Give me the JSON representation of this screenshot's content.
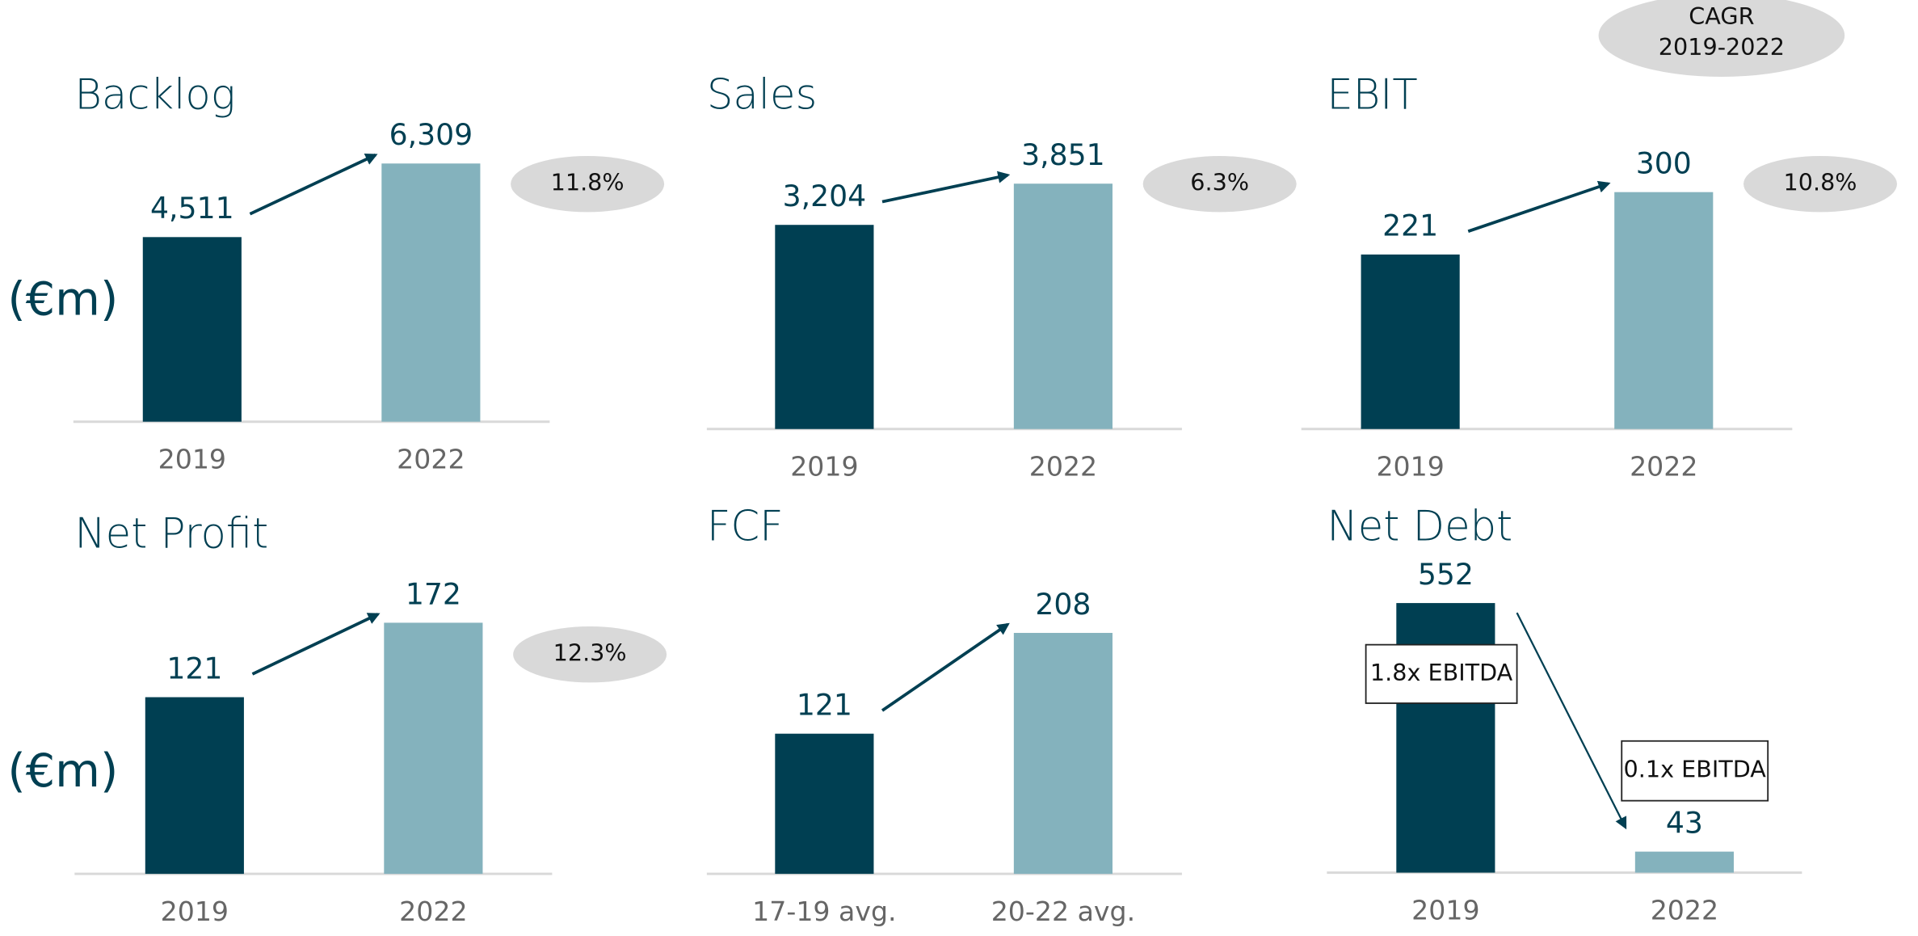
{
  "chart_data": [
    {
      "type": "bar",
      "title": "Backlog",
      "categories": [
        "2019",
        "2022"
      ],
      "values": [
        4511,
        6309
      ],
      "value_labels": [
        "4,511",
        "6,309"
      ],
      "colors": [
        "#003f52",
        "#84b2bd"
      ],
      "ylim": [
        0,
        6850
      ],
      "cagr": "11.8%"
    },
    {
      "type": "bar",
      "title": "Sales",
      "categories": [
        "2019",
        "2022"
      ],
      "values": [
        3204,
        3851
      ],
      "value_labels": [
        "3,204",
        "3,851"
      ],
      "colors": [
        "#003f52",
        "#84b2bd"
      ],
      "ylim": [
        0,
        4400
      ],
      "cagr": "6.3%"
    },
    {
      "type": "bar",
      "title": "EBIT",
      "categories": [
        "2019",
        "2022"
      ],
      "values": [
        221,
        300
      ],
      "colors": [
        "#003f52",
        "#84b2bd"
      ],
      "ylim": [
        0,
        355
      ],
      "cagr": "10.8%"
    },
    {
      "type": "bar",
      "title": "Net Profit",
      "categories": [
        "2019",
        "2022"
      ],
      "values": [
        121,
        172
      ],
      "colors": [
        "#003f52",
        "#84b2bd"
      ],
      "ylim": [
        0,
        192
      ],
      "cagr": "12.3%"
    },
    {
      "type": "bar",
      "title": "FCF",
      "categories": [
        "17-19 avg.",
        "20-22 avg."
      ],
      "values": [
        121,
        208
      ],
      "colors": [
        "#003f52",
        "#84b2bd"
      ],
      "ylim": [
        0,
        242
      ]
    },
    {
      "type": "bar",
      "title": "Net Debt",
      "categories": [
        "2019",
        "2022"
      ],
      "values": [
        552,
        43
      ],
      "colors": [
        "#003f52",
        "#84b2bd"
      ],
      "ylim": [
        0,
        574
      ],
      "annotations": [
        "1.8x EBITDA",
        "0.1x EBITDA"
      ]
    }
  ],
  "unit_labels": [
    "(€m)",
    "(€m)"
  ],
  "cagr_header": "CAGR 2019-2022"
}
